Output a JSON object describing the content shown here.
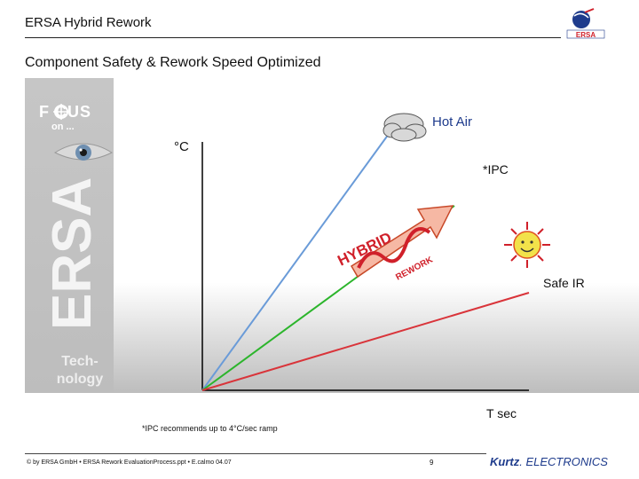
{
  "header": {
    "title": "ERSA Hybrid Rework"
  },
  "slide": {
    "subtitle": "Component Safety & Rework Speed Optimized"
  },
  "sidebar": {
    "focus_label": "F  CUS",
    "focus_sub": "on ...",
    "tech_line1": "Tech-",
    "tech_line2": "nology",
    "brand_vertical": "ERSA"
  },
  "logo": {
    "text": "ERSA"
  },
  "chart_data": {
    "type": "line",
    "ylabel": "°C",
    "xlabel": "T sec",
    "series": [
      {
        "name": "Hot Air",
        "color": "#6a9bd8",
        "values": [
          0,
          100
        ]
      },
      {
        "name": "*IPC",
        "color": "#2cb52c",
        "values": [
          0,
          76
        ]
      },
      {
        "name": "Safe IR",
        "color": "#d9343a",
        "values": [
          0,
          38
        ]
      }
    ],
    "x": [
      0,
      100
    ],
    "annotations": {
      "hybrid": "HYBRID",
      "rework": "REWORK"
    }
  },
  "footnote": "*IPC recommends up to 4°C/sec ramp",
  "footer": {
    "copyright": "© by ERSA GmbH • ERSA Rework EvaluationProcess.ppt • E.calmo 04.07",
    "page": "9",
    "company_bold": "Kurtz",
    "company_rest": ". ELECTRONICS"
  },
  "colors": {
    "accent": "#1e3b8c",
    "brand_red": "#d0202a"
  }
}
